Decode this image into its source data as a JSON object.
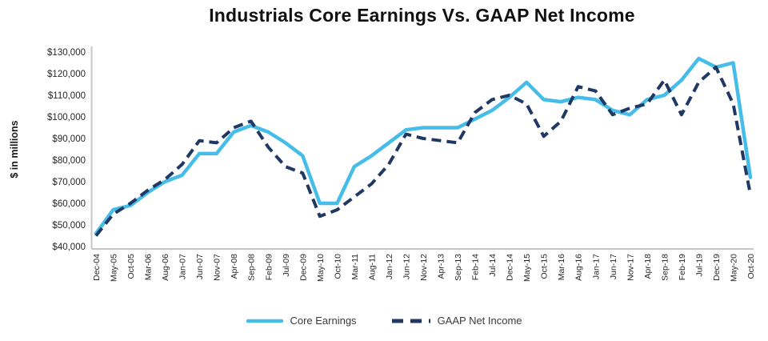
{
  "chart_data": {
    "type": "line",
    "title": "Industrials Core Earnings Vs. GAAP Net Income",
    "ylabel": "$ in millions",
    "ylim": [
      40000,
      130000
    ],
    "ytick_step": 10000,
    "y_tick_labels": [
      "$40,000",
      "$50,000",
      "$60,000",
      "$70,000",
      "$80,000",
      "$90,000",
      "$100,000",
      "$110,000",
      "$120,000",
      "$130,000"
    ],
    "grid": false,
    "legend_position": "bottom",
    "axis_color": "#c6c6c6",
    "tick_label_color": "#262626",
    "x_labels": [
      "Dec-04",
      "May-05",
      "Oct-05",
      "Mar-06",
      "Aug-06",
      "Jan-07",
      "Jun-07",
      "Nov-07",
      "Apr-08",
      "Sep-08",
      "Feb-09",
      "Jul-09",
      "Dec-09",
      "May-10",
      "Oct-10",
      "Mar-11",
      "Aug-11",
      "Jan-12",
      "Jun-12",
      "Nov-12",
      "Apr-13",
      "Sep-13",
      "Feb-14",
      "Jul-14",
      "Dec-14",
      "May-15",
      "Oct-15",
      "Mar-16",
      "Aug-16",
      "Jan-17",
      "Jun-17",
      "Nov-17",
      "Apr-18",
      "Sep-18",
      "Feb-19",
      "Jul-19",
      "Dec-19",
      "May-20",
      "Oct-20"
    ],
    "series": [
      {
        "name": "Core Earnings",
        "color": "#45BDE8",
        "style": "solid",
        "values": [
          46000,
          57000,
          59000,
          65000,
          70000,
          73000,
          83000,
          83000,
          93000,
          96000,
          93000,
          88000,
          82000,
          60000,
          60000,
          77000,
          82000,
          88000,
          94000,
          95000,
          95000,
          95000,
          99000,
          103000,
          109000,
          116000,
          108000,
          107000,
          109000,
          108000,
          103000,
          101000,
          108000,
          110000,
          117000,
          127000,
          123000,
          125000,
          72000
        ]
      },
      {
        "name": "GAAP Net Income",
        "color": "#1F3864",
        "style": "dashed",
        "values": [
          45000,
          55000,
          60000,
          66000,
          71000,
          78000,
          89000,
          88000,
          95000,
          98000,
          86000,
          77000,
          74000,
          54000,
          57000,
          63000,
          69000,
          78000,
          92000,
          90000,
          89000,
          88000,
          102000,
          108000,
          110000,
          106000,
          91000,
          98000,
          114000,
          112000,
          101000,
          104000,
          106000,
          117000,
          101000,
          116000,
          123000,
          106000,
          64000
        ]
      }
    ]
  }
}
